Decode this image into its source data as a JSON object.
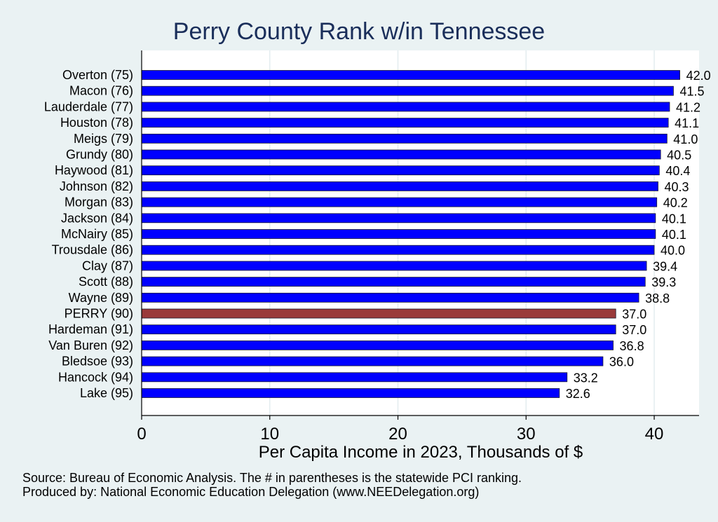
{
  "chart_data": {
    "type": "bar",
    "orientation": "horizontal",
    "title": "Perry County Rank w/in Tennessee",
    "xlabel": "Per Capita Income in 2023, Thousands of $",
    "xlim": [
      0,
      43.5
    ],
    "xticks": [
      0,
      10,
      20,
      30,
      40
    ],
    "grid": true,
    "categories": [
      "Overton (75)",
      "Macon (76)",
      "Lauderdale (77)",
      "Houston (78)",
      "Meigs (79)",
      "Grundy (80)",
      "Haywood (81)",
      "Johnson (82)",
      "Morgan (83)",
      "Jackson (84)",
      "McNairy (85)",
      "Trousdale (86)",
      "Clay (87)",
      "Scott (88)",
      "Wayne (89)",
      "PERRY (90)",
      "Hardeman (91)",
      "Van Buren (92)",
      "Bledsoe (93)",
      "Hancock (94)",
      "Lake (95)"
    ],
    "values": [
      42.0,
      41.5,
      41.2,
      41.1,
      41.0,
      40.5,
      40.4,
      40.3,
      40.2,
      40.1,
      40.1,
      40.0,
      39.4,
      39.3,
      38.8,
      37.0,
      37.0,
      36.8,
      36.0,
      33.2,
      32.6
    ],
    "value_labels": [
      "42.0",
      "41.5",
      "41.2",
      "41.1",
      "41.0",
      "40.5",
      "40.4",
      "40.3",
      "40.2",
      "40.1",
      "40.1",
      "40.0",
      "39.4",
      "39.3",
      "38.8",
      "37.0",
      "37.0",
      "36.8",
      "36.0",
      "33.2",
      "32.6"
    ],
    "highlight_index": 15,
    "colors": {
      "bar": "#0000ff",
      "highlight": "#9a3a3a",
      "background": "#eaf2f3",
      "plot_background": "#ffffff",
      "title": "#1a2e5a"
    }
  },
  "notes": {
    "source": "Source: Bureau of Economic Analysis. The # in parentheses is the statewide PCI ranking.",
    "produced": "Produced by: National Economic Education Delegation (www.NEEDelegation.org)"
  }
}
